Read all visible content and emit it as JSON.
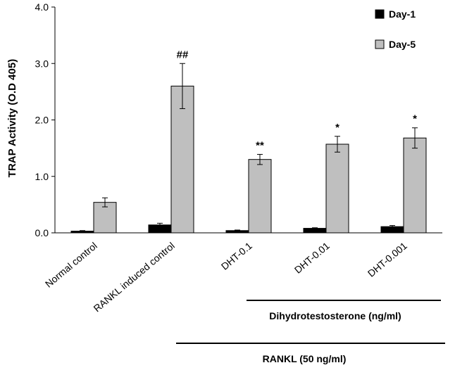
{
  "chart_data": {
    "type": "bar",
    "title": "",
    "xlabel": "",
    "ylabel": "TRAP Activity (O.D 405)",
    "ylim": [
      0,
      4
    ],
    "yticks": [
      "0.0",
      "1.0",
      "2.0",
      "3.0",
      "4.0"
    ],
    "categories": [
      "Normal control",
      "RANKL induced control",
      "DHT-0.1",
      "DHT-0.01",
      "DHT-0.001"
    ],
    "series": [
      {
        "name": "Day-1",
        "color": "#000000",
        "values": [
          0.03,
          0.14,
          0.04,
          0.08,
          0.11
        ],
        "errors": [
          0.01,
          0.03,
          0.01,
          0.01,
          0.02
        ]
      },
      {
        "name": "Day-5",
        "color": "#bfbfbf",
        "values": [
          0.54,
          2.6,
          1.3,
          1.57,
          1.68
        ],
        "errors": [
          0.08,
          0.4,
          0.09,
          0.14,
          0.18
        ]
      }
    ],
    "significance": [
      "",
      "##",
      "**",
      "*",
      "*"
    ],
    "legend_position": "top-right",
    "grid": false,
    "group_labels": {
      "dht": "Dihydrotestosterone (ng/ml)",
      "rankl": "RANKL (50 ng/ml)"
    }
  }
}
